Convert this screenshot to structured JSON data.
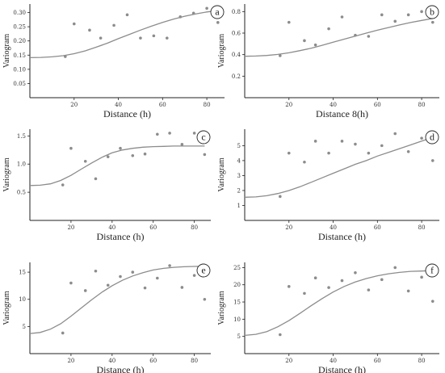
{
  "colors": {
    "axis": "#222222",
    "curve": "#8c8c8c",
    "points": "#8c8c8c",
    "background": "#ffffff"
  },
  "chart_data": [
    {
      "type": "scatter",
      "panel": "a",
      "xlabel": "Distance (h)",
      "ylabel": "Variogram",
      "xlim": [
        0,
        88
      ],
      "ylim": [
        0,
        0.33
      ],
      "xticks": [
        "20",
        "40",
        "60",
        "80"
      ],
      "yticks": [
        "0.05",
        "0.10",
        "0.15",
        "0.20",
        "0.25",
        "0.30"
      ],
      "grid": false,
      "points": {
        "x": [
          16,
          20,
          27,
          32,
          38,
          44,
          50,
          56,
          62,
          68,
          74,
          80,
          85
        ],
        "y": [
          0.145,
          0.26,
          0.238,
          0.21,
          0.255,
          0.292,
          0.21,
          0.218,
          0.21,
          0.285,
          0.298,
          0.315,
          0.265
        ]
      },
      "model_curve": {
        "x": [
          0,
          5,
          10,
          15,
          20,
          25,
          30,
          35,
          40,
          45,
          50,
          55,
          60,
          65,
          70,
          75,
          80,
          85
        ],
        "y": [
          0.141,
          0.142,
          0.144,
          0.148,
          0.155,
          0.165,
          0.178,
          0.192,
          0.208,
          0.223,
          0.238,
          0.252,
          0.265,
          0.277,
          0.287,
          0.295,
          0.302,
          0.307
        ]
      }
    },
    {
      "type": "scatter",
      "panel": "b",
      "xlabel": "Distance 8(h)",
      "ylabel": "Variogram",
      "xlim": [
        0,
        88
      ],
      "ylim": [
        0,
        0.87
      ],
      "xticks": [
        "20",
        "40",
        "60",
        "80"
      ],
      "yticks": [
        "0.2",
        "0.4",
        "0.6",
        "0.8"
      ],
      "grid": false,
      "points": {
        "x": [
          16,
          20,
          27,
          32,
          38,
          44,
          50,
          56,
          62,
          68,
          74,
          80,
          85
        ],
        "y": [
          0.39,
          0.7,
          0.53,
          0.49,
          0.64,
          0.75,
          0.58,
          0.57,
          0.77,
          0.71,
          0.77,
          0.8,
          0.7
        ]
      },
      "model_curve": {
        "x": [
          0,
          5,
          10,
          15,
          20,
          25,
          30,
          35,
          40,
          45,
          50,
          55,
          60,
          65,
          70,
          75,
          80,
          85
        ],
        "y": [
          0.385,
          0.387,
          0.392,
          0.402,
          0.417,
          0.437,
          0.46,
          0.487,
          0.515,
          0.544,
          0.572,
          0.6,
          0.627,
          0.652,
          0.676,
          0.698,
          0.718,
          0.736
        ]
      }
    },
    {
      "type": "scatter",
      "panel": "c",
      "xlabel": "Distance (h)",
      "ylabel": "Variogram",
      "xlim": [
        0,
        88
      ],
      "ylim": [
        0,
        1.62
      ],
      "xticks": [
        "20",
        "40",
        "60",
        "80"
      ],
      "yticks": [
        "0.5",
        "1.0",
        "1.5"
      ],
      "grid": false,
      "points": {
        "x": [
          16,
          20,
          27,
          32,
          38,
          44,
          50,
          56,
          62,
          68,
          74,
          80,
          85
        ],
        "y": [
          0.63,
          1.28,
          1.05,
          0.74,
          1.13,
          1.28,
          1.15,
          1.18,
          1.53,
          1.55,
          1.35,
          1.55,
          1.17
        ]
      },
      "model_curve": {
        "x": [
          0,
          5,
          10,
          15,
          20,
          25,
          30,
          35,
          40,
          45,
          50,
          55,
          60,
          65,
          70,
          75,
          80,
          85
        ],
        "y": [
          0.62,
          0.625,
          0.65,
          0.71,
          0.8,
          0.91,
          1.02,
          1.12,
          1.2,
          1.25,
          1.28,
          1.3,
          1.31,
          1.315,
          1.32,
          1.32,
          1.32,
          1.32
        ]
      }
    },
    {
      "type": "scatter",
      "panel": "d",
      "xlabel": "Distance (h)",
      "ylabel": "Variogram",
      "xlim": [
        0,
        88
      ],
      "ylim": [
        0,
        6.1
      ],
      "xticks": [
        "20",
        "40",
        "60",
        "80"
      ],
      "yticks": [
        "1",
        "2",
        "3",
        "4",
        "5"
      ],
      "grid": false,
      "points": {
        "x": [
          16,
          20,
          27,
          32,
          38,
          44,
          50,
          56,
          62,
          68,
          74,
          80,
          85
        ],
        "y": [
          1.6,
          4.5,
          3.9,
          5.3,
          4.5,
          5.3,
          5.1,
          4.5,
          5.0,
          5.8,
          4.6,
          5.5,
          4.0
        ]
      },
      "model_curve": {
        "x": [
          0,
          5,
          10,
          15,
          20,
          25,
          30,
          35,
          40,
          45,
          50,
          55,
          60,
          65,
          70,
          75,
          80,
          85
        ],
        "y": [
          1.55,
          1.57,
          1.65,
          1.8,
          2.0,
          2.25,
          2.55,
          2.85,
          3.15,
          3.45,
          3.75,
          4.0,
          4.3,
          4.55,
          4.8,
          5.05,
          5.3,
          5.55
        ]
      }
    },
    {
      "type": "scatter",
      "panel": "e",
      "xlabel": "Distance (h)",
      "ylabel": "Variogram",
      "xlim": [
        0,
        88
      ],
      "ylim": [
        0,
        16.8
      ],
      "xticks": [
        "20",
        "40",
        "60",
        "80"
      ],
      "yticks": [
        "5",
        "10",
        "15"
      ],
      "grid": false,
      "points": {
        "x": [
          16,
          20,
          27,
          32,
          38,
          44,
          50,
          56,
          62,
          68,
          74,
          80,
          85
        ],
        "y": [
          3.8,
          13.0,
          11.6,
          15.2,
          12.6,
          14.2,
          15.0,
          12.1,
          13.9,
          16.2,
          12.2,
          14.4,
          10.0
        ]
      },
      "model_curve": {
        "x": [
          0,
          5,
          10,
          15,
          20,
          25,
          30,
          35,
          40,
          45,
          50,
          55,
          60,
          65,
          70,
          75,
          80,
          85
        ],
        "y": [
          3.7,
          3.9,
          4.5,
          5.5,
          6.9,
          8.4,
          9.9,
          11.3,
          12.5,
          13.5,
          14.3,
          14.9,
          15.4,
          15.7,
          15.9,
          16.0,
          16.05,
          16.1
        ]
      }
    },
    {
      "type": "scatter",
      "panel": "f",
      "xlabel": "Distance (h)",
      "ylabel": "Variogram",
      "xlim": [
        0,
        88
      ],
      "ylim": [
        0,
        26.5
      ],
      "xticks": [
        "20",
        "40",
        "60",
        "80"
      ],
      "yticks": [
        "5",
        "10",
        "15",
        "20",
        "25"
      ],
      "grid": false,
      "points": {
        "x": [
          16,
          20,
          27,
          32,
          38,
          44,
          50,
          56,
          62,
          68,
          74,
          80,
          85
        ],
        "y": [
          5.5,
          19.5,
          17.5,
          22.0,
          19.2,
          21.2,
          23.5,
          18.5,
          21.5,
          25.0,
          18.2,
          22.2,
          15.2
        ]
      },
      "model_curve": {
        "x": [
          0,
          5,
          10,
          15,
          20,
          25,
          30,
          35,
          40,
          45,
          50,
          55,
          60,
          65,
          70,
          75,
          80,
          85
        ],
        "y": [
          5.3,
          5.6,
          6.4,
          7.8,
          9.6,
          11.7,
          13.9,
          16.0,
          17.9,
          19.5,
          20.8,
          21.8,
          22.6,
          23.2,
          23.6,
          23.9,
          24.0,
          24.1
        ]
      }
    }
  ]
}
